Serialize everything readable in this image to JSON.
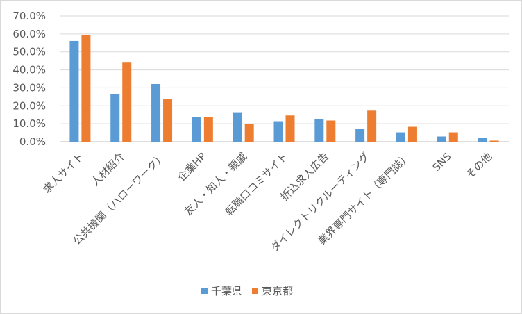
{
  "chart_data": {
    "type": "bar",
    "title": "",
    "xlabel": "",
    "ylabel": "",
    "ylim": [
      0,
      0.7
    ],
    "y_ticks": [
      "0.0%",
      "10.0%",
      "20.0%",
      "30.0%",
      "40.0%",
      "50.0%",
      "60.0%",
      "70.0%"
    ],
    "grid": true,
    "legend_position": "bottom",
    "categories": [
      "求人サイト",
      "人材紹介",
      "公共機関（ハローワーク）",
      "企業HP",
      "友人・知人・親戚",
      "転職口コミサイト",
      "折込求人広告",
      "ダイレクトリクルーティング",
      "業界専門サイト（専門誌）",
      "SNS",
      "その他"
    ],
    "series": [
      {
        "name": "千葉県",
        "color": "#5B9BD5",
        "values": [
          0.561,
          0.265,
          0.321,
          0.138,
          0.164,
          0.114,
          0.126,
          0.071,
          0.052,
          0.029,
          0.02
        ]
      },
      {
        "name": "東京都",
        "color": "#ED7D31",
        "values": [
          0.592,
          0.444,
          0.238,
          0.138,
          0.099,
          0.146,
          0.118,
          0.173,
          0.083,
          0.052,
          0.006
        ]
      }
    ]
  }
}
